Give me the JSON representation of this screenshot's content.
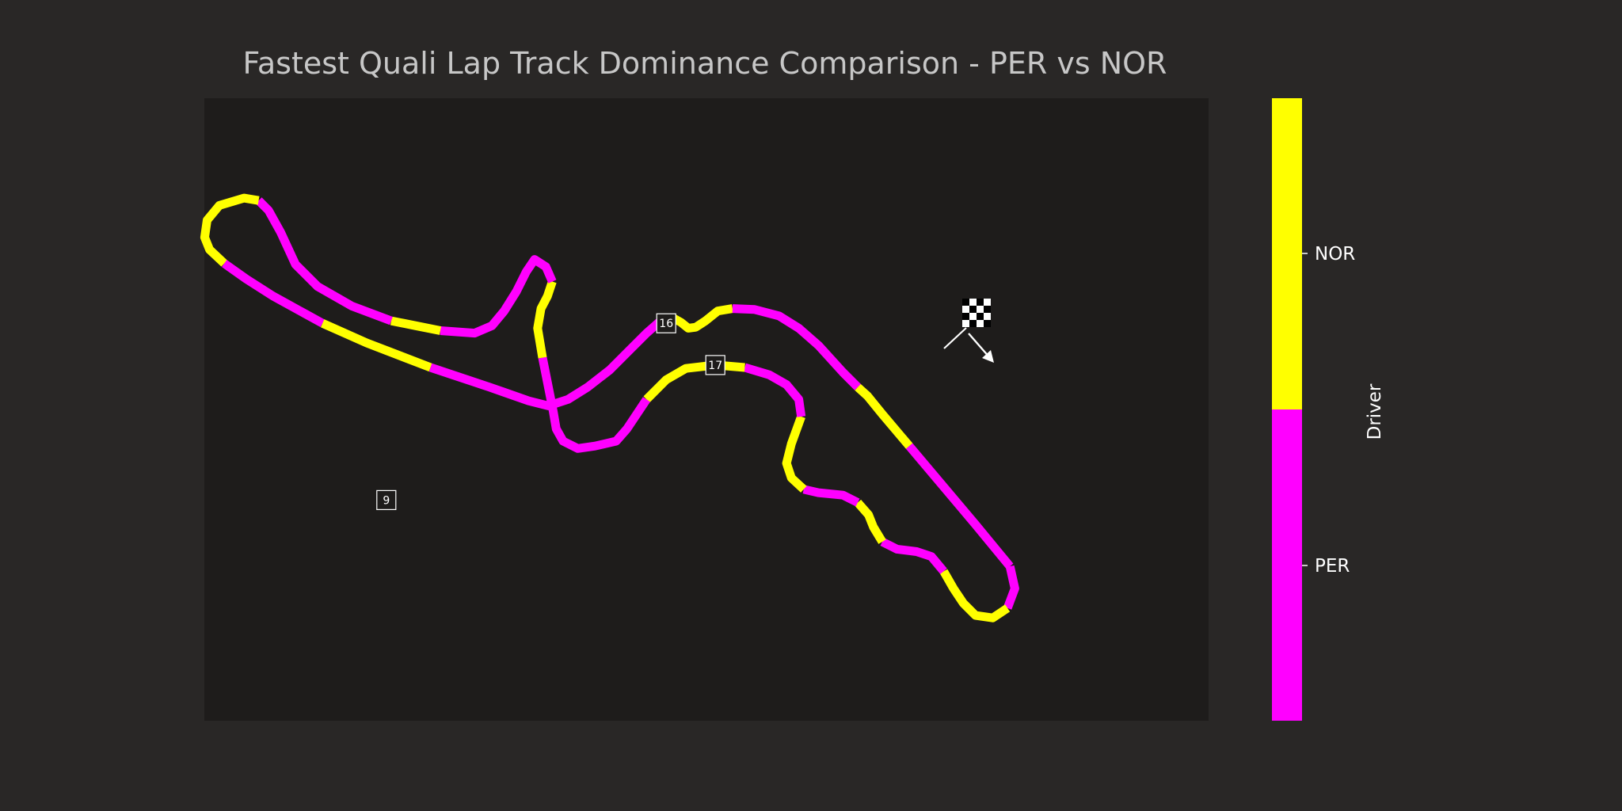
{
  "chart_data": {
    "type": "line",
    "title": "Fastest Quali Lap Track Dominance Comparison - PER vs NOR",
    "legend_placement": "right (colorbar)",
    "grid": false,
    "colors": {
      "figure_background": "#292726",
      "axes_background": "#1e1c1b",
      "PER": "#ff00ff",
      "NOR": "#ffff00",
      "markers": "#ffffff"
    },
    "colorbar": {
      "label": "Driver",
      "entries": [
        {
          "label": "NOR",
          "color": "#ffff00"
        },
        {
          "label": "PER",
          "color": "#ff00ff"
        }
      ]
    },
    "corner_labels": [
      {
        "text": "9",
        "x": 490,
        "y": -420
      },
      {
        "text": "16",
        "x": 1060,
        "y": -60
      },
      {
        "text": "17",
        "x": 1160,
        "y": -145
      }
    ],
    "track": {
      "path": [
        [
          1450,
          -190
        ],
        [
          1470,
          -208
        ],
        [
          1500,
          -245
        ],
        [
          1555,
          -310
        ],
        [
          1690,
          -470
        ],
        [
          1760,
          -555
        ],
        [
          1770,
          -600
        ],
        [
          1755,
          -640
        ],
        [
          1725,
          -660
        ],
        [
          1690,
          -655
        ],
        [
          1665,
          -630
        ],
        [
          1645,
          -600
        ],
        [
          1625,
          -565
        ],
        [
          1600,
          -535
        ],
        [
          1570,
          -525
        ],
        [
          1530,
          -520
        ],
        [
          1500,
          -505
        ],
        [
          1482,
          -475
        ],
        [
          1472,
          -450
        ],
        [
          1450,
          -425
        ],
        [
          1420,
          -410
        ],
        [
          1370,
          -405
        ],
        [
          1340,
          -398
        ],
        [
          1315,
          -375
        ],
        [
          1305,
          -345
        ],
        [
          1315,
          -305
        ],
        [
          1335,
          -250
        ],
        [
          1330,
          -215
        ],
        [
          1305,
          -185
        ],
        [
          1270,
          -165
        ],
        [
          1220,
          -150
        ],
        [
          1160,
          -145
        ],
        [
          1100,
          -152
        ],
        [
          1060,
          -175
        ],
        [
          1020,
          -215
        ],
        [
          980,
          -275
        ],
        [
          958,
          -300
        ],
        [
          915,
          -310
        ],
        [
          880,
          -315
        ],
        [
          850,
          -300
        ],
        [
          836,
          -275
        ],
        [
          830,
          -240
        ],
        [
          820,
          -190
        ],
        [
          808,
          -130
        ],
        [
          798,
          -70
        ],
        [
          805,
          -30
        ],
        [
          818,
          -5
        ],
        [
          828,
          25
        ],
        [
          815,
          55
        ],
        [
          792,
          70
        ],
        [
          775,
          45
        ],
        [
          755,
          5
        ],
        [
          730,
          -35
        ],
        [
          705,
          -65
        ],
        [
          670,
          -80
        ],
        [
          600,
          -75
        ],
        [
          550,
          -65
        ],
        [
          500,
          -55
        ],
        [
          420,
          -25
        ],
        [
          350,
          15
        ],
        [
          305,
          60
        ],
        [
          275,
          125
        ],
        [
          250,
          170
        ],
        [
          230,
          190
        ],
        [
          200,
          195
        ],
        [
          150,
          180
        ],
        [
          125,
          150
        ],
        [
          120,
          115
        ],
        [
          130,
          90
        ],
        [
          160,
          62
        ],
        [
          205,
          30
        ],
        [
          260,
          -5
        ],
        [
          360,
          -60
        ],
        [
          450,
          -100
        ],
        [
          580,
          -150
        ],
        [
          700,
          -190
        ],
        [
          780,
          -218
        ],
        [
          820,
          -228
        ],
        [
          860,
          -215
        ],
        [
          900,
          -190
        ],
        [
          945,
          -155
        ],
        [
          980,
          -120
        ],
        [
          1020,
          -80
        ],
        [
          1045,
          -58
        ],
        [
          1072,
          -48
        ],
        [
          1090,
          -58
        ],
        [
          1105,
          -70
        ],
        [
          1120,
          -68
        ],
        [
          1140,
          -55
        ],
        [
          1165,
          -35
        ],
        [
          1195,
          -30
        ],
        [
          1240,
          -32
        ],
        [
          1290,
          -45
        ],
        [
          1330,
          -70
        ],
        [
          1370,
          -105
        ],
        [
          1420,
          -160
        ],
        [
          1450,
          -190
        ]
      ],
      "segments": [
        {
          "driver": "NOR",
          "from": 0,
          "to": 3
        },
        {
          "driver": "PER",
          "from": 3,
          "to": 5
        },
        {
          "driver": "PER",
          "from": 5,
          "to": 7
        },
        {
          "driver": "NOR",
          "from": 7,
          "to": 12
        },
        {
          "driver": "PER",
          "from": 12,
          "to": 16
        },
        {
          "driver": "NOR",
          "from": 16,
          "to": 19
        },
        {
          "driver": "PER",
          "from": 19,
          "to": 22
        },
        {
          "driver": "NOR",
          "from": 22,
          "to": 26
        },
        {
          "driver": "PER",
          "from": 26,
          "to": 30
        },
        {
          "driver": "NOR",
          "from": 30,
          "to": 34
        },
        {
          "driver": "PER",
          "from": 34,
          "to": 43
        },
        {
          "driver": "NOR",
          "from": 43,
          "to": 47
        },
        {
          "driver": "PER",
          "from": 47,
          "to": 55
        },
        {
          "driver": "NOR",
          "from": 55,
          "to": 57
        },
        {
          "driver": "PER",
          "from": 57,
          "to": 63
        },
        {
          "driver": "NOR",
          "from": 63,
          "to": 69
        },
        {
          "driver": "PER",
          "from": 69,
          "to": 72
        },
        {
          "driver": "NOR",
          "from": 72,
          "to": 74
        },
        {
          "driver": "PER",
          "from": 74,
          "to": 84
        },
        {
          "driver": "NOR",
          "from": 84,
          "to": 90
        },
        {
          "driver": "PER",
          "from": 90,
          "to": 97
        }
      ]
    }
  }
}
